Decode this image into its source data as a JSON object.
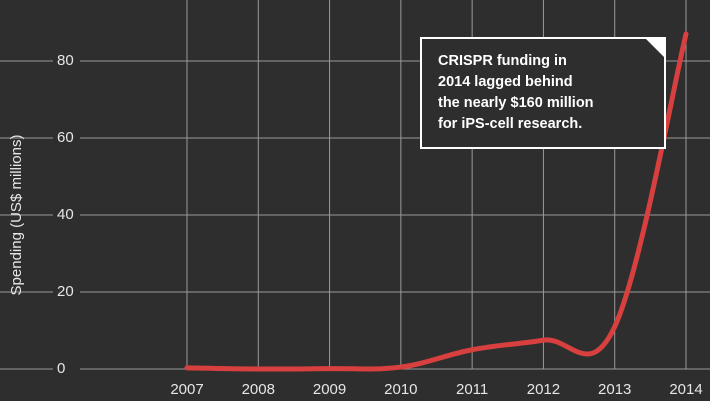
{
  "chart_data": {
    "type": "line",
    "y_label": "Spending (US$ millions)",
    "x": [
      2007,
      2008,
      2009,
      2010,
      2011,
      2012,
      2013,
      2014
    ],
    "series": [
      {
        "name": "CRISPR funding",
        "color": "#d8403f",
        "values": [
          0.3,
          0,
          0.1,
          0.5,
          5,
          7.5,
          11,
          87
        ]
      }
    ],
    "xlim": [
      2007,
      2014
    ],
    "xticks": [
      2007,
      2008,
      2009,
      2010,
      2011,
      2012,
      2013,
      2014
    ],
    "ylim": [
      0,
      95
    ],
    "yticks": [
      0,
      20,
      40,
      60,
      80
    ],
    "grid": true,
    "annotation": [
      "CRISPR funding in",
      "2014 lagged behind",
      "the nearly $160 million",
      "for iPS-cell research."
    ]
  }
}
